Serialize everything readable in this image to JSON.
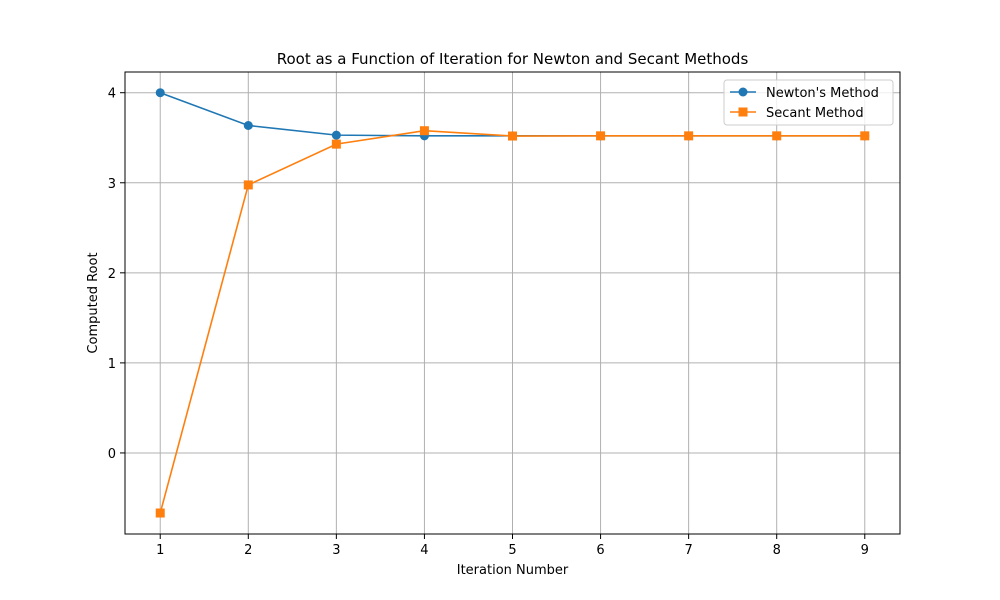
{
  "chart_data": {
    "type": "line",
    "title": "Root as a Function of Iteration for Newton and Secant Methods",
    "xlabel": "Iteration Number",
    "ylabel": "Computed Root",
    "x": [
      1,
      2,
      3,
      4,
      5,
      6,
      7,
      8,
      9
    ],
    "xlim": [
      0.6,
      9.4
    ],
    "ylim": [
      -0.9,
      4.23
    ],
    "xticks": [
      "1",
      "2",
      "3",
      "4",
      "5",
      "6",
      "7",
      "8",
      "9"
    ],
    "yticks": [
      "0",
      "1",
      "2",
      "3",
      "4"
    ],
    "grid": true,
    "legend_position": "top-right",
    "series": [
      {
        "name": "Newton's Method",
        "color": "#1f77b4",
        "marker": "circle",
        "values": [
          4.0,
          3.636,
          3.529,
          3.521,
          3.521,
          3.521,
          3.521,
          3.521,
          3.521
        ]
      },
      {
        "name": "Secant Method",
        "color": "#ff7f0e",
        "marker": "square",
        "values": [
          -0.667,
          2.976,
          3.429,
          3.578,
          3.519,
          3.521,
          3.521,
          3.521,
          3.521
        ]
      }
    ]
  }
}
